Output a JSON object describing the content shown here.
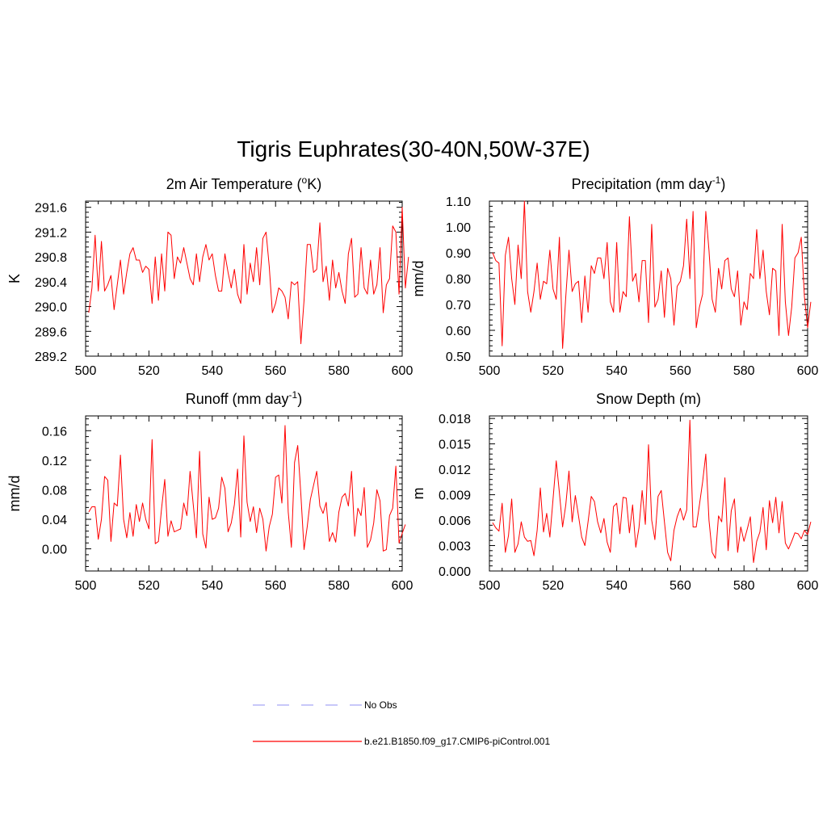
{
  "figure_title": "Tigris Euphrates(30-40N,50W-37E)",
  "legend": [
    {
      "label": "No Obs",
      "color": "#a7a7f5",
      "style": "dashed"
    },
    {
      "label": "b.e21.B1850.f09_g17.CMIP6-piControl.001",
      "color": "#ff0000",
      "style": "solid"
    }
  ],
  "chart_data": [
    {
      "type": "line",
      "title": "2m Air Temperature (°K)",
      "title_main": "2m Air Temperature (",
      "title_sup": "o",
      "title_end": "K)",
      "ylabel": "K",
      "xlabel": "",
      "xlim": [
        500,
        600
      ],
      "ylim": [
        289.2,
        291.7
      ],
      "xticks": [
        500,
        520,
        540,
        560,
        580,
        600
      ],
      "xtick_labels": [
        "500",
        "520",
        "540",
        "560",
        "580",
        "600"
      ],
      "yticks": [
        289.2,
        289.6,
        290.0,
        290.4,
        290.8,
        291.2,
        291.6
      ],
      "ytick_labels": [
        "289.2",
        "289.6",
        "290.0",
        "290.4",
        "290.8",
        "291.2",
        "291.6"
      ],
      "x_start": 501,
      "series": [
        {
          "name": "b.e21.B1850.f09_g17.CMIP6-piControl.001",
          "color": "#ff0000",
          "values": [
            289.9,
            290.3,
            291.15,
            290.25,
            291.05,
            290.25,
            290.35,
            290.5,
            289.95,
            290.35,
            290.75,
            290.2,
            290.55,
            290.85,
            290.95,
            290.75,
            290.75,
            290.55,
            290.65,
            290.6,
            290.05,
            290.8,
            290.1,
            290.85,
            290.25,
            291.2,
            291.15,
            290.45,
            290.8,
            290.7,
            290.95,
            290.7,
            290.45,
            290.35,
            290.85,
            290.4,
            290.8,
            291.0,
            290.75,
            290.85,
            290.5,
            290.25,
            290.25,
            290.85,
            290.55,
            290.3,
            290.6,
            290.2,
            290.05,
            291.0,
            290.2,
            290.7,
            290.4,
            290.95,
            290.35,
            291.1,
            291.2,
            290.65,
            289.9,
            290.05,
            290.3,
            290.25,
            290.15,
            289.8,
            290.4,
            290.35,
            290.4,
            289.4,
            290.1,
            291.0,
            291.0,
            290.55,
            290.6,
            291.35,
            290.4,
            290.65,
            290.1,
            290.75,
            290.3,
            290.55,
            290.25,
            290.05,
            290.85,
            291.1,
            290.15,
            290.2,
            290.95,
            290.3,
            290.2,
            290.75,
            290.2,
            290.35,
            290.95,
            289.9,
            290.35,
            290.45,
            291.3,
            291.2,
            290.2,
            291.6,
            290.3,
            290.8
          ]
        }
      ]
    },
    {
      "type": "line",
      "title": "Precipitation (mm day-1)",
      "title_main": "Precipitation (mm day",
      "title_sup": "-1",
      "title_end": ")",
      "ylabel": "mm/d",
      "xlabel": "",
      "xlim": [
        500,
        600
      ],
      "ylim": [
        0.5,
        1.1
      ],
      "xticks": [
        500,
        520,
        540,
        560,
        580,
        600
      ],
      "xtick_labels": [
        "500",
        "520",
        "540",
        "560",
        "580",
        "600"
      ],
      "yticks": [
        0.5,
        0.6,
        0.7,
        0.8,
        0.9,
        1.0,
        1.1
      ],
      "ytick_labels": [
        "0.50",
        "0.60",
        "0.70",
        "0.80",
        "0.90",
        "1.00",
        "1.10"
      ],
      "x_start": 501,
      "series": [
        {
          "name": "b.e21.B1850.f09_g17.CMIP6-piControl.001",
          "color": "#ff0000",
          "values": [
            0.9,
            0.87,
            0.86,
            0.54,
            0.89,
            0.96,
            0.8,
            0.7,
            0.93,
            0.8,
            1.1,
            0.75,
            0.67,
            0.75,
            0.86,
            0.72,
            0.79,
            0.78,
            0.91,
            0.76,
            0.72,
            0.96,
            0.53,
            0.73,
            0.91,
            0.75,
            0.78,
            0.79,
            0.63,
            0.81,
            0.67,
            0.85,
            0.82,
            0.88,
            0.88,
            0.8,
            0.94,
            0.71,
            0.67,
            0.94,
            0.67,
            0.75,
            0.73,
            1.04,
            0.79,
            0.82,
            0.71,
            0.87,
            0.87,
            0.63,
            1.01,
            0.69,
            0.72,
            0.83,
            0.65,
            0.84,
            0.8,
            0.62,
            0.77,
            0.79,
            0.85,
            1.03,
            0.8,
            1.06,
            0.61,
            0.69,
            0.74,
            1.06,
            0.91,
            0.72,
            0.67,
            0.84,
            0.76,
            0.87,
            0.88,
            0.76,
            0.73,
            0.83,
            0.62,
            0.71,
            0.68,
            0.82,
            0.8,
            0.99,
            0.8,
            0.91,
            0.75,
            0.66,
            0.84,
            0.83,
            0.58,
            1.01,
            0.71,
            0.58,
            0.69,
            0.88,
            0.9,
            0.96,
            0.73,
            0.61,
            0.71
          ]
        }
      ]
    },
    {
      "type": "line",
      "title": "Runoff (mm day-1)",
      "title_main": "Runoff (mm day",
      "title_sup": "-1",
      "title_end": ")",
      "ylabel": "mm/d",
      "xlabel": "",
      "xlim": [
        500,
        600
      ],
      "ylim": [
        -0.03,
        0.18
      ],
      "xticks": [
        500,
        520,
        540,
        560,
        580,
        600
      ],
      "xtick_labels": [
        "500",
        "520",
        "540",
        "560",
        "580",
        "600"
      ],
      "yticks": [
        0.0,
        0.04,
        0.08,
        0.12,
        0.16
      ],
      "ytick_labels": [
        "0.00",
        "0.04",
        "0.08",
        "0.12",
        "0.16"
      ],
      "x_start": 501,
      "series": [
        {
          "name": "b.e21.B1850.f09_g17.CMIP6-piControl.001",
          "color": "#ff0000",
          "values": [
            0.05,
            0.057,
            0.057,
            0.013,
            0.04,
            0.098,
            0.093,
            0.01,
            0.062,
            0.058,
            0.127,
            0.04,
            0.015,
            0.049,
            0.017,
            0.06,
            0.037,
            0.062,
            0.04,
            0.027,
            0.148,
            0.007,
            0.01,
            0.055,
            0.094,
            0.017,
            0.038,
            0.023,
            0.025,
            0.027,
            0.062,
            0.045,
            0.105,
            0.06,
            0.015,
            0.132,
            0.02,
            0.001,
            0.07,
            0.04,
            0.042,
            0.055,
            0.097,
            0.082,
            0.023,
            0.035,
            0.06,
            0.108,
            0.016,
            0.153,
            0.063,
            0.037,
            0.057,
            0.022,
            0.055,
            0.04,
            -0.003,
            0.03,
            0.047,
            0.097,
            0.1,
            0.062,
            0.167,
            0.05,
            0.002,
            0.117,
            0.14,
            0.073,
            -0.001,
            0.03,
            0.067,
            0.086,
            0.105,
            0.058,
            0.048,
            0.063,
            0.01,
            0.022,
            0.009,
            0.05,
            0.07,
            0.075,
            0.058,
            0.105,
            0.017,
            0.055,
            0.045,
            0.083,
            0.002,
            0.012,
            0.035,
            0.08,
            0.065,
            -0.003,
            -0.001,
            0.045,
            0.055,
            0.112,
            0.008,
            0.021,
            0.033
          ]
        }
      ]
    },
    {
      "type": "line",
      "title": "Snow Depth (m)",
      "title_main": "Snow Depth (m)",
      "title_sup": "",
      "title_end": "",
      "ylabel": "m",
      "xlabel": "",
      "xlim": [
        500,
        600
      ],
      "ylim": [
        0.0,
        0.0183
      ],
      "xticks": [
        500,
        520,
        540,
        560,
        580,
        600
      ],
      "xtick_labels": [
        "500",
        "520",
        "540",
        "560",
        "580",
        "600"
      ],
      "yticks": [
        0.0,
        0.003,
        0.006,
        0.009,
        0.012,
        0.015,
        0.018
      ],
      "ytick_labels": [
        "0.000",
        "0.003",
        "0.006",
        "0.009",
        "0.012",
        "0.015",
        "0.018"
      ],
      "x_start": 501,
      "series": [
        {
          "name": "b.e21.B1850.f09_g17.CMIP6-piControl.001",
          "color": "#ff0000",
          "values": [
            0.0057,
            0.0051,
            0.0047,
            0.008,
            0.0022,
            0.0042,
            0.0085,
            0.0022,
            0.0032,
            0.0058,
            0.004,
            0.0035,
            0.0036,
            0.0018,
            0.0048,
            0.0098,
            0.0046,
            0.0068,
            0.004,
            0.0085,
            0.013,
            0.0092,
            0.0052,
            0.0078,
            0.0118,
            0.0058,
            0.0089,
            0.0065,
            0.004,
            0.003,
            0.0058,
            0.0088,
            0.0082,
            0.0058,
            0.0045,
            0.0062,
            0.0034,
            0.0022,
            0.0076,
            0.008,
            0.0044,
            0.0087,
            0.0086,
            0.0045,
            0.0078,
            0.0028,
            0.0051,
            0.0095,
            0.0055,
            0.0149,
            0.006,
            0.0037,
            0.0088,
            0.0095,
            0.0058,
            0.0022,
            0.0012,
            0.0048,
            0.0064,
            0.0074,
            0.006,
            0.0072,
            0.0178,
            0.0052,
            0.0052,
            0.0078,
            0.0105,
            0.0138,
            0.006,
            0.0022,
            0.0015,
            0.0065,
            0.0058,
            0.011,
            0.0024,
            0.0071,
            0.0085,
            0.0022,
            0.0052,
            0.0035,
            0.0049,
            0.0064,
            0.001,
            0.0035,
            0.0046,
            0.0075,
            0.0025,
            0.0083,
            0.0057,
            0.0087,
            0.0045,
            0.0082,
            0.0033,
            0.0026,
            0.0035,
            0.0045,
            0.0044,
            0.0038,
            0.0048,
            0.0043,
            0.0058
          ]
        }
      ]
    }
  ]
}
